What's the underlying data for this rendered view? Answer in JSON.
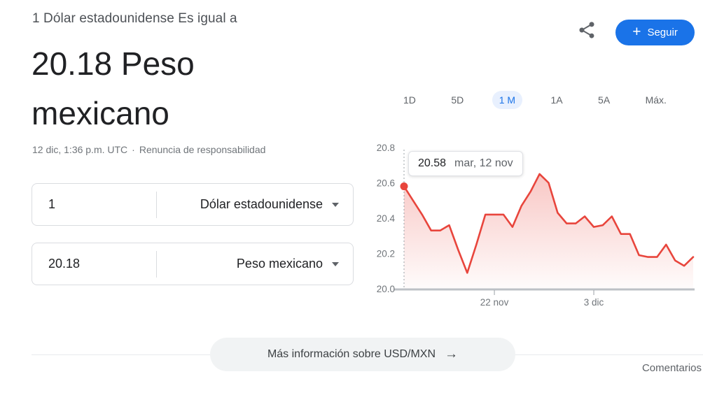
{
  "header": {
    "subtitle": "1 Dólar estadounidense Es igual a",
    "title": "20.18 Peso mexicano",
    "timestamp": "12 dic, 1:36 p.m. UTC",
    "meta_separator": "·",
    "disclaimer_link": "Renuncia de responsabilidad"
  },
  "actions": {
    "share_icon": "share-icon",
    "follow_button": {
      "plus": "+",
      "label": "Seguir"
    }
  },
  "converter": {
    "from_value": "1",
    "from_currency": "Dólar estadounidense",
    "to_value": "20.18",
    "to_currency": "Peso mexicano"
  },
  "tabs": {
    "items": [
      {
        "label": "1D",
        "selected": false
      },
      {
        "label": "5D",
        "selected": false
      },
      {
        "label": "1 M",
        "selected": true
      },
      {
        "label": "1A",
        "selected": false
      },
      {
        "label": "5A",
        "selected": false
      },
      {
        "label": "Máx.",
        "selected": false
      }
    ]
  },
  "tooltip": {
    "value": "20.58",
    "date": "mar, 12 nov"
  },
  "chart_data": {
    "type": "area",
    "series": [
      {
        "name": "USD/MXN",
        "values": [
          20.58,
          20.5,
          20.42,
          20.33,
          20.33,
          20.36,
          20.22,
          20.09,
          20.25,
          20.42,
          20.42,
          20.42,
          20.35,
          20.47,
          20.55,
          20.65,
          20.6,
          20.43,
          20.37,
          20.37,
          20.41,
          20.35,
          20.36,
          20.41,
          20.31,
          20.31,
          20.19,
          20.18,
          20.18,
          20.25,
          20.16,
          20.13,
          20.18
        ]
      }
    ],
    "x_range": [
      "12 nov",
      "12 dic"
    ],
    "x_tick_labels": [
      "22 nov",
      "3 dic"
    ],
    "x_tick_indices": [
      10,
      21
    ],
    "ylim": [
      20.0,
      20.8
    ],
    "y_ticks": [
      20.8,
      20.6,
      20.4,
      20.2,
      20.0
    ],
    "grid": false,
    "legend_position": "none",
    "line_color": "#e8453c",
    "fill_color": "#e8453c",
    "highlight_point": {
      "index": 0,
      "value": 20.58,
      "tooltip_value": "20.58",
      "tooltip_date": "mar, 12 nov"
    }
  },
  "footer": {
    "more_info_label": "Más información sobre USD/MXN",
    "arrow_icon": "→",
    "comments_label": "Comentarios"
  },
  "colors": {
    "accent_blue": "#1a73e8",
    "selected_tab_bg": "#e8f0fe",
    "chart_red": "#e8453c",
    "text_primary": "#202124",
    "text_secondary": "#5f6368",
    "text_muted": "#70757a",
    "border": "#dadce0"
  }
}
